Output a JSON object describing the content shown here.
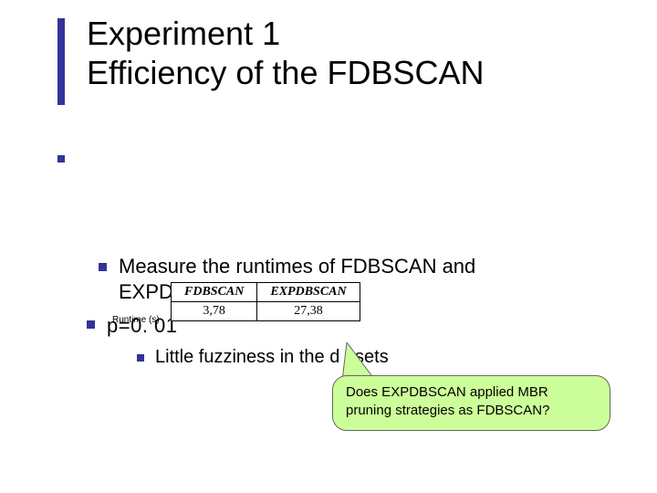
{
  "title": "Experiment 1\nEfficiency of the FDBSCAN",
  "bullets": {
    "b1": "Measure the runtimes of FDBSCAN and EXPDBS",
    "b2": "p=0. 01",
    "runtimeOverlay": "Runtime  (s)",
    "sub": "Little fuzziness in the d    asets"
  },
  "table": {
    "headers": [
      "FDBSCAN",
      "EXPDBSCAN"
    ],
    "row": [
      "3,78",
      "27,38"
    ]
  },
  "callout": "Does EXPDBSCAN applied MBR pruning strategies as FDBSCAN?",
  "colors": {
    "accent": "#333399",
    "calloutBg": "#ccff99"
  }
}
